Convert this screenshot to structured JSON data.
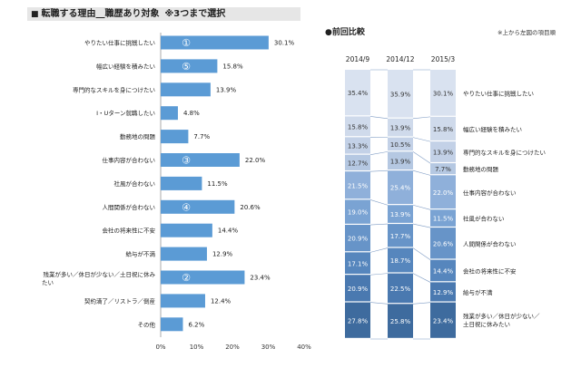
{
  "header": {
    "square": "■",
    "title": "転職する理由",
    "subtitle": "職歴あり対象",
    "note": "※3つまで選択"
  },
  "right_header": {
    "title": "●前回比較",
    "note": "※上から左図の項目順"
  },
  "colors": {
    "bar": "#5b9bd5",
    "gradient": [
      "#d9e2f0",
      "#cfdaeb",
      "#c3d1e7",
      "#b5c8e2",
      "#8fb0da",
      "#7aa3d3",
      "#6794c8",
      "#5686bd",
      "#4a79b0",
      "#3e6b9e",
      "#335b88"
    ]
  },
  "chart_data": [
    {
      "type": "bar",
      "orientation": "horizontal",
      "categories": [
        "やりたい仕事に挑戦したい",
        "幅広い経験を積みたい",
        "専門的なスキルを身につけたい",
        "I・Uターン就職したい",
        "勤務地の問題",
        "仕事内容が合わない",
        "社風が合わない",
        "人間関係が合わない",
        "会社の将来性に不安",
        "給与が不満",
        "残業が多い／休日が少ない／土日祝に休み",
        "契約満了／リストラ／倒産",
        "その他"
      ],
      "category_line2": [
        "",
        "",
        "",
        "",
        "",
        "",
        "",
        "",
        "",
        "",
        "たい",
        "",
        ""
      ],
      "values": [
        30.1,
        15.8,
        13.9,
        4.8,
        7.7,
        22.0,
        11.5,
        20.6,
        14.4,
        12.9,
        23.4,
        12.4,
        6.2
      ],
      "value_labels": [
        "30.1%",
        "15.8%",
        "13.9%",
        "4.8%",
        "7.7%",
        "22.0%",
        "11.5%",
        "20.6%",
        "14.4%",
        "12.9%",
        "23.4%",
        "12.4%",
        "6.2%"
      ],
      "rank_markers": [
        {
          "index": 0,
          "label": "①"
        },
        {
          "index": 1,
          "label": "⑤"
        },
        {
          "index": 5,
          "label": "③"
        },
        {
          "index": 7,
          "label": "④"
        },
        {
          "index": 10,
          "label": "②"
        }
      ],
      "xlim": [
        0,
        40
      ],
      "xticks": [
        "0%",
        "10%",
        "20%",
        "30%",
        "40%"
      ]
    },
    {
      "type": "bar",
      "stacked": true,
      "categories": [
        "2014/9",
        "2014/12",
        "2015/3"
      ],
      "segment_labels": [
        "やりたい仕事に挑戦したい",
        "幅広い経験を積みたい",
        "専門的なスキルを身につけたい",
        "勤務地の問題",
        "仕事内容が合わない",
        "社風が合わない",
        "人間関係が合わない",
        "会社の将来性に不安",
        "給与が不満",
        "残業が多い／休日が少ない／",
        "土日祝に休みたい"
      ],
      "series": [
        {
          "values": [
            35.4,
            35.9,
            30.1
          ]
        },
        {
          "values": [
            15.8,
            13.9,
            15.8
          ]
        },
        {
          "values": [
            13.3,
            10.5,
            13.9
          ]
        },
        {
          "values": [
            12.7,
            13.9,
            7.7
          ]
        },
        {
          "values": [
            21.5,
            25.4,
            22.0
          ]
        },
        {
          "values": [
            19.0,
            13.9,
            11.5
          ]
        },
        {
          "values": [
            20.9,
            17.7,
            20.6
          ]
        },
        {
          "values": [
            17.1,
            18.7,
            14.4
          ]
        },
        {
          "values": [
            20.9,
            22.5,
            12.9
          ]
        },
        {
          "values": [
            27.8,
            25.8,
            23.4
          ]
        }
      ]
    }
  ]
}
